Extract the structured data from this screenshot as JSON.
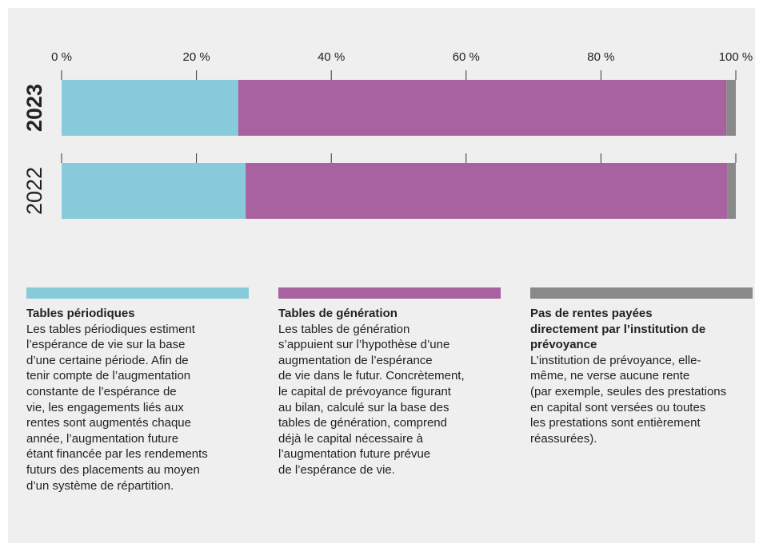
{
  "chart_data": {
    "type": "stacked-bar-horizontal",
    "categories": [
      "2023",
      "2022"
    ],
    "series": [
      {
        "name": "Tables périodiques",
        "color": "#88cbdb",
        "values": [
          26.2,
          27.3
        ],
        "description": [
          "Les tables périodiques estiment",
          "l’espérance de vie sur la base",
          "d’une certaine période. Afin de",
          "tenir compte de l’augmentation",
          "constante de l’espérance de",
          "vie, les engagements liés aux",
          "rentes sont augmentés chaque",
          "année, l’augmentation future",
          "étant financée par les rendements",
          "futurs des placements au moyen",
          "d’un système de répartition."
        ]
      },
      {
        "name": "Tables de génération",
        "color": "#a862a0",
        "values": [
          72.4,
          71.4
        ],
        "description": [
          "Les tables de génération",
          "s’appuient sur l’hypothèse d’une",
          "augmentation de l’espérance",
          "de vie dans le futur. Concrètement,",
          "le capital de prévoyance figurant",
          "au bilan, calculé sur la base des",
          "tables de génération, comprend",
          "déjà le capital nécessaire à",
          "l’augmentation future prévue",
          "de l’espérance de vie."
        ]
      },
      {
        "name": "Pas de rentes payées directement par l’institution de prévoyance",
        "color": "#898989",
        "values": [
          1.4,
          1.3
        ],
        "description": [
          "L’institution de prévoyance, elle-",
          "même, ne verse aucune rente",
          "(par exemple, seules des prestations",
          "en capital sont versées ou toutes",
          "les prestations sont entièrement",
          "réassurées)."
        ]
      }
    ],
    "xlim": [
      0,
      100
    ],
    "xticks": [
      {
        "value": 0,
        "label": "0 %"
      },
      {
        "value": 20,
        "label": "20 %"
      },
      {
        "value": 40,
        "label": "40 %"
      },
      {
        "value": 60,
        "label": "60 %"
      },
      {
        "value": 80,
        "label": "80 %"
      },
      {
        "value": 100,
        "label": "100 %"
      }
    ]
  }
}
